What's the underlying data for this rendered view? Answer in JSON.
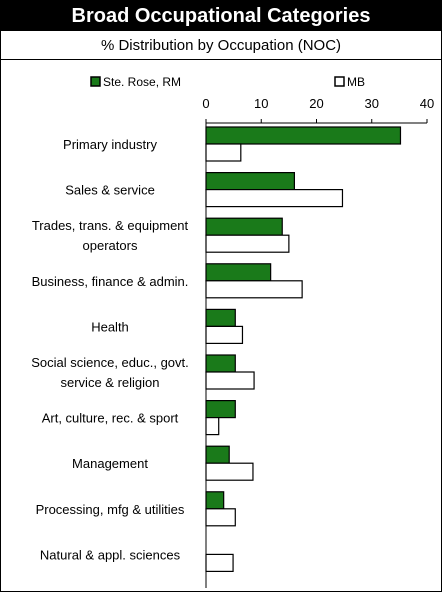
{
  "title": "Broad Occupational Categories",
  "subtitle": "% Distribution by Occupation (NOC)",
  "colors": {
    "series1": "#1a7a1a",
    "series2": "#ffffff",
    "stroke": "#000000"
  },
  "chart_data": {
    "type": "bar",
    "orientation": "horizontal",
    "title": "Broad Occupational Categories",
    "subtitle": "% Distribution by Occupation (NOC)",
    "xlabel": "",
    "ylabel": "",
    "xlim": [
      0,
      40
    ],
    "ticks": [
      0,
      10,
      20,
      30,
      40
    ],
    "tick_labels": [
      "0",
      "10",
      "20",
      "30",
      "40"
    ],
    "grid": false,
    "legend": "top",
    "categories": [
      [
        "Primary industry"
      ],
      [
        "Sales & service"
      ],
      [
        "Trades, trans. & equipment",
        "operators"
      ],
      [
        "Business, finance & admin."
      ],
      [
        "Health"
      ],
      [
        "Social science, educ., govt.",
        "service & religion"
      ],
      [
        "Art, culture, rec. & sport"
      ],
      [
        "Management"
      ],
      [
        "Processing, mfg & utilities"
      ],
      [
        "Natural & appl. sciences"
      ]
    ],
    "series": [
      {
        "name": "Ste. Rose, RM",
        "color": "#1a7a1a",
        "values": [
          35.2,
          16.0,
          13.8,
          11.7,
          5.3,
          5.3,
          5.3,
          4.2,
          3.2,
          0.0
        ]
      },
      {
        "name": "MB",
        "color": "#ffffff",
        "values": [
          6.3,
          24.7,
          15.0,
          17.4,
          6.6,
          8.7,
          2.3,
          8.5,
          5.3,
          4.9
        ]
      }
    ]
  }
}
